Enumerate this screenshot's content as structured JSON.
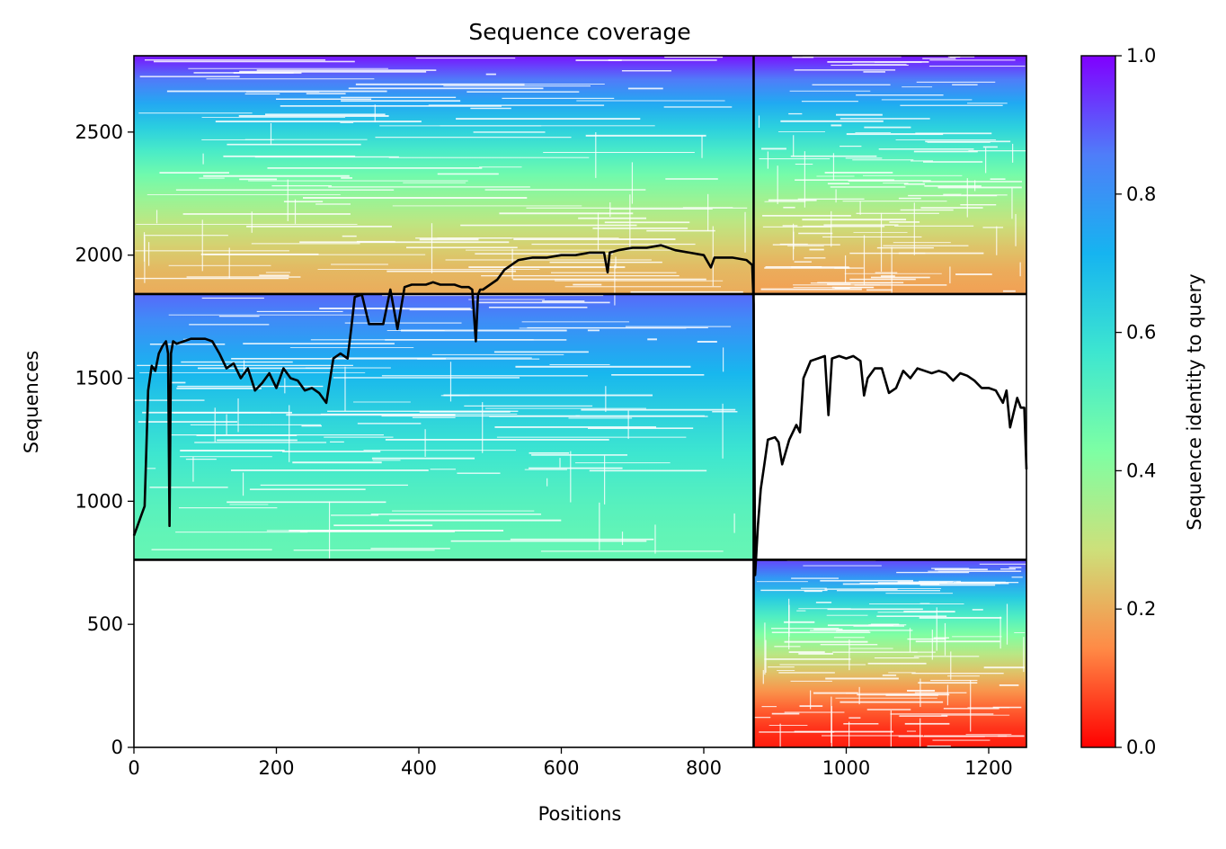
{
  "chart_data": {
    "type": "heatmap",
    "title": "Sequence coverage",
    "xlabel": "Positions",
    "ylabel": "Sequences",
    "xlim": [
      0,
      1253
    ],
    "ylim": [
      0,
      2810
    ],
    "xticks": [
      0,
      200,
      400,
      600,
      800,
      1000,
      1200
    ],
    "yticks": [
      0,
      500,
      1000,
      1500,
      2000,
      2500
    ],
    "colorbar": {
      "label": "Sequence identity to query",
      "range": [
        0,
        1
      ],
      "ticks": [
        "0.0",
        "0.2",
        "0.4",
        "0.6",
        "0.8",
        "1.0"
      ],
      "colormap": "rainbow_r",
      "colors": [
        "#ff0000",
        "#ff8a46",
        "#cde07a",
        "#7dffa4",
        "#3de6d0",
        "#16b4f0",
        "#4f7df9",
        "#8000ff"
      ]
    },
    "domain_boundaries": {
      "x": 870,
      "y": [
        762,
        1842
      ]
    },
    "blocks": [
      {
        "name": "chain-A-group-1",
        "x": [
          0,
          870
        ],
        "y": [
          762,
          1842
        ],
        "identity_bottom": 0.48,
        "identity_top": 0.88
      },
      {
        "name": "chain-A-group-2",
        "x": [
          0,
          870
        ],
        "y": [
          1842,
          2810
        ],
        "identity_bottom": 0.2,
        "identity_top": 0.98
      },
      {
        "name": "chain-B-group-1",
        "x": [
          870,
          1253
        ],
        "y": [
          0,
          762
        ],
        "identity_bottom": 0.03,
        "identity_top": 0.92
      },
      {
        "name": "chain-B-group-2",
        "x": [
          870,
          1253
        ],
        "y": [
          1842,
          2810
        ],
        "identity_bottom": 0.18,
        "identity_top": 0.98
      }
    ],
    "coverage_line": {
      "x": [
        0,
        5,
        10,
        15,
        20,
        25,
        30,
        35,
        40,
        45,
        48,
        50,
        52,
        55,
        60,
        70,
        80,
        100,
        110,
        120,
        130,
        140,
        150,
        160,
        170,
        180,
        190,
        200,
        210,
        220,
        230,
        240,
        250,
        260,
        270,
        280,
        290,
        300,
        305,
        310,
        320,
        330,
        340,
        350,
        360,
        370,
        380,
        390,
        400,
        410,
        420,
        430,
        440,
        450,
        460,
        470,
        475,
        480,
        483,
        486,
        490,
        500,
        510,
        520,
        530,
        540,
        560,
        580,
        600,
        620,
        640,
        660,
        665,
        668,
        680,
        700,
        720,
        740,
        760,
        780,
        800,
        810,
        815,
        820,
        840,
        860,
        868,
        870,
        872,
        876,
        880,
        885,
        890,
        900,
        905,
        910,
        920,
        930,
        935,
        940,
        950,
        960,
        970,
        975,
        980,
        990,
        1000,
        1010,
        1020,
        1025,
        1030,
        1040,
        1050,
        1060,
        1070,
        1080,
        1090,
        1100,
        1110,
        1120,
        1130,
        1140,
        1150,
        1160,
        1170,
        1180,
        1190,
        1200,
        1210,
        1220,
        1225,
        1230,
        1240,
        1245,
        1250,
        1253
      ],
      "y": [
        860,
        900,
        940,
        980,
        1450,
        1550,
        1530,
        1600,
        1630,
        1650,
        1600,
        900,
        1600,
        1650,
        1640,
        1650,
        1660,
        1660,
        1650,
        1600,
        1540,
        1560,
        1500,
        1540,
        1450,
        1480,
        1520,
        1460,
        1540,
        1500,
        1490,
        1450,
        1460,
        1440,
        1400,
        1580,
        1600,
        1580,
        1700,
        1830,
        1840,
        1720,
        1720,
        1720,
        1860,
        1700,
        1870,
        1880,
        1880,
        1880,
        1890,
        1880,
        1880,
        1880,
        1870,
        1870,
        1860,
        1650,
        1840,
        1860,
        1860,
        1880,
        1900,
        1940,
        1960,
        1980,
        1990,
        1990,
        2000,
        2000,
        2010,
        2010,
        1930,
        2010,
        2020,
        2030,
        2030,
        2040,
        2020,
        2010,
        2000,
        1950,
        1990,
        1990,
        1990,
        1980,
        1960,
        1800,
        700,
        900,
        1050,
        1150,
        1250,
        1260,
        1240,
        1150,
        1250,
        1310,
        1280,
        1500,
        1570,
        1580,
        1590,
        1350,
        1580,
        1590,
        1580,
        1590,
        1570,
        1430,
        1500,
        1540,
        1540,
        1440,
        1460,
        1530,
        1500,
        1540,
        1530,
        1520,
        1530,
        1520,
        1490,
        1520,
        1510,
        1490,
        1460,
        1460,
        1450,
        1400,
        1450,
        1300,
        1420,
        1380,
        1380,
        1130,
        1050,
        800,
        500
      ]
    },
    "background_pattern": {
      "name": "gaps-in-alignment",
      "colors": [
        "#ffffff"
      ]
    }
  }
}
